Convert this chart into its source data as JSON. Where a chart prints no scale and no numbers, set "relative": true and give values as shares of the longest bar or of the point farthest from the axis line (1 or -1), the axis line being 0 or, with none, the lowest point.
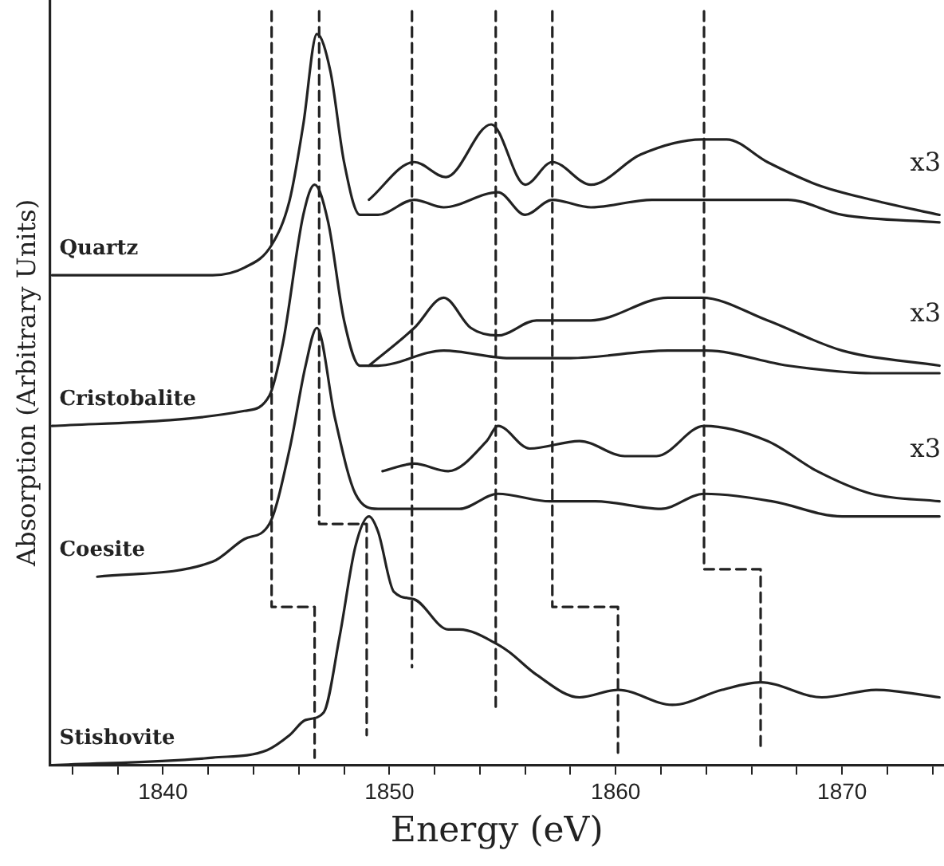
{
  "chart_data": {
    "type": "line",
    "relative": true,
    "xlabel": "Energy (eV)",
    "ylabel": "Absorption (Arbitrary Units)",
    "xlim": [
      1835,
      1874.5
    ],
    "xticks": [
      {
        "value": 1836,
        "label": null
      },
      {
        "value": 1838,
        "label": null
      },
      1840,
      {
        "value": 1842,
        "label": null
      },
      {
        "value": 1844,
        "label": null
      },
      {
        "value": 1846,
        "label": null
      },
      {
        "value": 1848,
        "label": null
      },
      1850,
      {
        "value": 1852,
        "label": null
      },
      {
        "value": 1854,
        "label": null
      },
      {
        "value": 1856,
        "label": null
      },
      {
        "value": 1858,
        "label": null
      },
      1860,
      {
        "value": 1862,
        "label": null
      },
      {
        "value": 1864,
        "label": null
      },
      {
        "value": 1866,
        "label": null
      },
      {
        "value": 1868,
        "label": null
      },
      1870,
      {
        "value": 1872,
        "label": null
      },
      {
        "value": 1874,
        "label": null
      }
    ],
    "grid": false,
    "legend": false,
    "marker": "none",
    "line_style": "solid",
    "annotations": [
      "x3",
      "x3",
      "x3"
    ],
    "series": [
      {
        "name": "Quartz",
        "color": "#222222",
        "x": [
          1835.1,
          1842.2,
          1843.6,
          1844.8,
          1845.6,
          1846.2,
          1846.8,
          1847.4,
          1848.0,
          1848.7,
          1849.5,
          1851.1,
          1852.4,
          1854.8,
          1856.0,
          1857.2,
          1858.9,
          1861.6,
          1864.7,
          1867.6,
          1870.0,
          1874.3
        ],
        "values": [
          0.65,
          0.65,
          0.66,
          0.69,
          0.75,
          0.85,
          0.97,
          0.92,
          0.8,
          0.73,
          0.73,
          0.75,
          0.74,
          0.76,
          0.73,
          0.75,
          0.74,
          0.75,
          0.75,
          0.75,
          0.73,
          0.72
        ]
      },
      {
        "color": "#222222",
        "x": [
          1849.1,
          1851.1,
          1852.5,
          1854.5,
          1856.0,
          1857.2,
          1858.9,
          1861.1,
          1863.8,
          1864.9,
          1866.7,
          1868.9,
          1871.3,
          1874.3
        ],
        "values": [
          0.75,
          0.8,
          0.78,
          0.85,
          0.77,
          0.8,
          0.77,
          0.81,
          0.83,
          0.83,
          0.8,
          0.77,
          0.75,
          0.73
        ]
      },
      {
        "name": "Cristobalite",
        "color": "#222222",
        "x": [
          1835.1,
          1843.6,
          1844.7,
          1845.3,
          1846.2,
          1846.7,
          1847.3,
          1848.0,
          1848.7,
          1849.5,
          1852.4,
          1855.3,
          1858.0,
          1862.3,
          1864.0,
          1867.6,
          1871.3,
          1874.3
        ],
        "values": [
          0.45,
          0.47,
          0.49,
          0.56,
          0.73,
          0.77,
          0.72,
          0.59,
          0.53,
          0.53,
          0.55,
          0.54,
          0.54,
          0.55,
          0.55,
          0.53,
          0.52,
          0.52
        ]
      },
      {
        "color": "#222222",
        "x": [
          1849.1,
          1851.1,
          1852.4,
          1853.6,
          1854.8,
          1856.5,
          1858.9,
          1862.3,
          1863.8,
          1866.7,
          1870.0,
          1874.3
        ],
        "values": [
          0.53,
          0.58,
          0.62,
          0.58,
          0.57,
          0.59,
          0.59,
          0.62,
          0.62,
          0.59,
          0.55,
          0.53
        ]
      },
      {
        "name": "Coesite",
        "color": "#222222",
        "x": [
          1837.1,
          1842.2,
          1843.6,
          1844.7,
          1845.6,
          1846.3,
          1846.8,
          1847.6,
          1848.5,
          1849.5,
          1851.9,
          1853.1,
          1854.8,
          1857.1,
          1859.1,
          1862.0,
          1863.9,
          1866.9,
          1870.0,
          1874.3
        ],
        "values": [
          0.25,
          0.27,
          0.3,
          0.32,
          0.42,
          0.53,
          0.58,
          0.46,
          0.36,
          0.34,
          0.34,
          0.34,
          0.36,
          0.35,
          0.35,
          0.34,
          0.36,
          0.35,
          0.33,
          0.33
        ]
      },
      {
        "color": "#222222",
        "x": [
          1849.7,
          1851.1,
          1852.6,
          1854.3,
          1854.8,
          1856.2,
          1858.4,
          1860.4,
          1861.8,
          1863.9,
          1866.7,
          1868.9,
          1871.3,
          1874.3
        ],
        "values": [
          0.39,
          0.4,
          0.39,
          0.43,
          0.45,
          0.42,
          0.43,
          0.41,
          0.41,
          0.45,
          0.43,
          0.39,
          0.36,
          0.35
        ]
      },
      {
        "name": "Stishovite",
        "color": "#222222",
        "x": [
          1835.1,
          1842.2,
          1844.6,
          1845.6,
          1846.3,
          1847.1,
          1847.8,
          1848.5,
          1849.1,
          1849.5,
          1850.2,
          1851.1,
          1852.6,
          1853.1,
          1854.8,
          1855.3,
          1856.5,
          1858.4,
          1860.1,
          1862.5,
          1864.7,
          1866.4,
          1869.1,
          1871.5,
          1874.3
        ],
        "values": [
          0.0,
          0.01,
          0.02,
          0.04,
          0.06,
          0.07,
          0.17,
          0.29,
          0.33,
          0.31,
          0.23,
          0.22,
          0.18,
          0.18,
          0.16,
          0.15,
          0.12,
          0.09,
          0.1,
          0.08,
          0.1,
          0.11,
          0.09,
          0.1,
          0.09
        ]
      },
      {
        "color": "#222222",
        "line_style": "dashed",
        "x": [
          1844.8,
          1844.8,
          1846.7,
          1846.7
        ],
        "values": [
          1.0,
          0.21,
          0.21,
          0.01
        ]
      },
      {
        "color": "#222222",
        "line_style": "dashed",
        "x": [
          1846.9,
          1846.9,
          1849.0,
          1849.0
        ],
        "values": [
          1.0,
          0.32,
          0.32,
          0.04
        ]
      },
      {
        "color": "#222222",
        "line_style": "dashed",
        "x": [
          1851.0,
          1851.0
        ],
        "values": [
          1.0,
          0.13
        ]
      },
      {
        "color": "#222222",
        "line_style": "dashed",
        "x": [
          1854.7,
          1854.7
        ],
        "values": [
          1.0,
          0.07
        ]
      },
      {
        "color": "#222222",
        "line_style": "dashed",
        "x": [
          1857.2,
          1857.2,
          1860.1,
          1860.1
        ],
        "values": [
          1.0,
          0.21,
          0.21,
          0.01
        ]
      },
      {
        "color": "#222222",
        "line_style": "dashed",
        "x": [
          1863.9,
          1863.9,
          1866.4,
          1866.4
        ],
        "values": [
          1.0,
          0.26,
          0.26,
          0.02
        ]
      }
    ]
  }
}
